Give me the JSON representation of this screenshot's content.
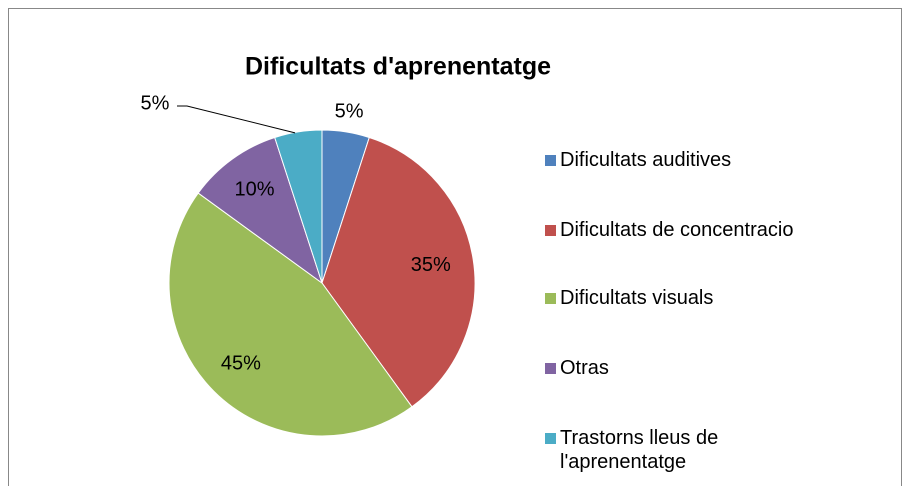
{
  "chart_data": {
    "type": "pie",
    "title": "Dificultats d'aprenentatge",
    "categories": [
      "Dificultats auditives",
      "Dificultats de concentracio",
      "Dificultats visuals",
      "Otras",
      "Trastorns lleus de l'aprenentatge"
    ],
    "values": [
      5,
      35,
      45,
      10,
      5
    ],
    "value_labels": [
      "5%",
      "35%",
      "45%",
      "10%",
      "5%"
    ],
    "colors": [
      "#4f81bd",
      "#c0504d",
      "#9bbb59",
      "#8064a2",
      "#4bacc6"
    ],
    "legend": "right"
  }
}
